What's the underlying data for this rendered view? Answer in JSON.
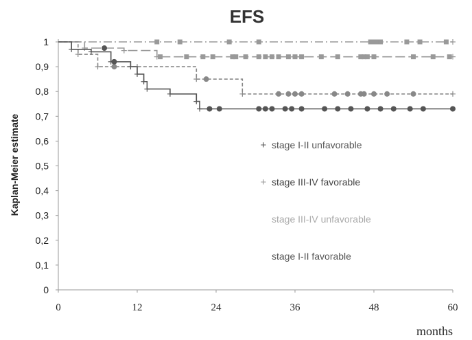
{
  "chart_data": {
    "type": "line",
    "title": "EFS",
    "ylabel": "Kaplan-Meier estimate",
    "xlabel": "months",
    "xlim": [
      0,
      60
    ],
    "ylim": [
      0,
      1
    ],
    "x_ticks": [
      0,
      12,
      24,
      36,
      48,
      60
    ],
    "x_tick_labels": [
      "0",
      "12",
      "24",
      "36",
      "48",
      "60"
    ],
    "y_ticks": [
      0,
      0.1,
      0.2,
      0.3,
      0.4,
      0.5,
      0.6,
      0.7,
      0.8,
      0.9,
      1
    ],
    "y_tick_labels": [
      "0",
      "0,1",
      "0,2",
      "0,3",
      "0,4",
      "0,5",
      "0,6",
      "0,7",
      "0,8",
      "0,9",
      "1"
    ],
    "legend_position": "center-right",
    "series": [
      {
        "name": "stage I-II favorable",
        "color": "#999999",
        "style": "dash-dot",
        "marker": "square",
        "steps": [
          [
            0,
            1
          ],
          [
            60,
            1
          ]
        ],
        "censored": [
          [
            15,
            1
          ],
          [
            18.5,
            1
          ],
          [
            26,
            1
          ],
          [
            30.5,
            1
          ],
          [
            47.5,
            1
          ],
          [
            48,
            1
          ],
          [
            48.5,
            1
          ],
          [
            49,
            1
          ],
          [
            53,
            1
          ],
          [
            55,
            1
          ],
          [
            59,
            1
          ]
        ]
      },
      {
        "name": "stage III-IV favorable",
        "color": "#999999",
        "style": "long-dash",
        "marker": "square",
        "steps": [
          [
            0,
            1
          ],
          [
            4,
            0.975
          ],
          [
            10,
            0.965
          ],
          [
            15,
            0.94
          ],
          [
            60,
            0.94
          ]
        ],
        "censored": [
          [
            15.5,
            0.94
          ],
          [
            19.5,
            0.94
          ],
          [
            22,
            0.94
          ],
          [
            23.5,
            0.94
          ],
          [
            26.5,
            0.94
          ],
          [
            27,
            0.94
          ],
          [
            28.5,
            0.94
          ],
          [
            30.5,
            0.94
          ],
          [
            31.5,
            0.94
          ],
          [
            32.5,
            0.94
          ],
          [
            33.5,
            0.94
          ],
          [
            35,
            0.94
          ],
          [
            36,
            0.94
          ],
          [
            37,
            0.94
          ],
          [
            40,
            0.94
          ],
          [
            42.5,
            0.94
          ],
          [
            46,
            0.94
          ],
          [
            46.5,
            0.94
          ],
          [
            47,
            0.94
          ],
          [
            48,
            0.94
          ],
          [
            54,
            0.94
          ],
          [
            57,
            0.94
          ],
          [
            59.5,
            0.94
          ]
        ]
      },
      {
        "name": "stage III-IV unfavorable",
        "color": "#888888",
        "style": "short-dash",
        "marker": "circle",
        "steps": [
          [
            0,
            1
          ],
          [
            3,
            0.95
          ],
          [
            6,
            0.9
          ],
          [
            12,
            0.9
          ],
          [
            21,
            0.85
          ],
          [
            28,
            0.79
          ],
          [
            60,
            0.79
          ]
        ],
        "censored": [
          [
            8.5,
            0.9
          ],
          [
            22.5,
            0.85
          ],
          [
            33.5,
            0.79
          ],
          [
            35,
            0.79
          ],
          [
            36,
            0.79
          ],
          [
            37,
            0.79
          ],
          [
            42,
            0.79
          ],
          [
            44,
            0.79
          ],
          [
            46,
            0.79
          ],
          [
            46.5,
            0.79
          ],
          [
            48,
            0.79
          ],
          [
            50,
            0.79
          ],
          [
            54,
            0.79
          ]
        ]
      },
      {
        "name": "stage I-II unfavorable",
        "color": "#555555",
        "style": "solid",
        "marker": "circle",
        "steps": [
          [
            0,
            1
          ],
          [
            2,
            0.97
          ],
          [
            5,
            0.96
          ],
          [
            8,
            0.92
          ],
          [
            11,
            0.9
          ],
          [
            12,
            0.87
          ],
          [
            13,
            0.84
          ],
          [
            13.5,
            0.81
          ],
          [
            17,
            0.79
          ],
          [
            21,
            0.76
          ],
          [
            21.5,
            0.73
          ],
          [
            60,
            0.73
          ]
        ],
        "censored": [
          [
            7,
            0.975
          ],
          [
            8.5,
            0.92
          ],
          [
            23,
            0.73
          ],
          [
            24.5,
            0.73
          ],
          [
            30.5,
            0.73
          ],
          [
            31.5,
            0.73
          ],
          [
            32.5,
            0.73
          ],
          [
            34.5,
            0.73
          ],
          [
            35.5,
            0.73
          ],
          [
            37,
            0.73
          ],
          [
            40.5,
            0.73
          ],
          [
            42.5,
            0.73
          ],
          [
            44.5,
            0.73
          ],
          [
            47,
            0.73
          ],
          [
            49,
            0.73
          ],
          [
            51,
            0.73
          ],
          [
            53.5,
            0.73
          ],
          [
            55.5,
            0.73
          ],
          [
            60,
            0.73
          ]
        ]
      }
    ],
    "legend": [
      {
        "label": "stage I-II unfavorable",
        "marker": "+",
        "marker_color": "#555555",
        "text_color": "#555555"
      },
      {
        "label": "stage III-IV favorable",
        "marker": "+",
        "marker_color": "#999999",
        "text_color": "#444444"
      },
      {
        "label": "stage III-IV unfavorable",
        "marker": "",
        "marker_color": "#aaaaaa",
        "text_color": "#aaaaaa"
      },
      {
        "label": "stage I-II favorable",
        "marker": "",
        "marker_color": "#555555",
        "text_color": "#555555"
      }
    ]
  }
}
